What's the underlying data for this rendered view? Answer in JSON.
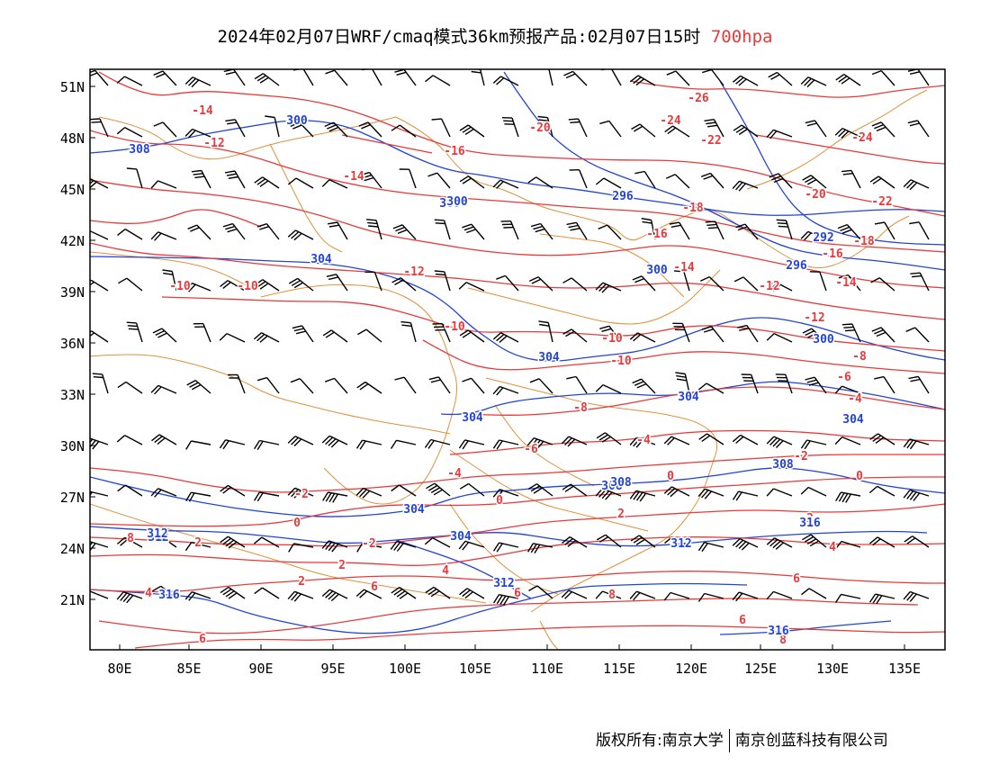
{
  "title": {
    "main": "2024年02月07日WRF/cmaq模式36km预报产品:02月07日15时",
    "level": "700hpa"
  },
  "axes": {
    "lat_labels": [
      "51N",
      "48N",
      "45N",
      "42N",
      "39N",
      "36N",
      "33N",
      "30N",
      "27N",
      "24N",
      "21N"
    ],
    "lon_labels": [
      "80E",
      "85E",
      "90E",
      "95E",
      "100E",
      "105E",
      "110E",
      "115E",
      "120E",
      "125E",
      "130E",
      "135E"
    ]
  },
  "colors": {
    "temperature": "#e8393b",
    "height": "#2243d6",
    "border": "#e0913a",
    "wind": "#000000"
  },
  "temp_labels": [
    "-14",
    "-12",
    "-16",
    "-20",
    "-26",
    "-24",
    "-22",
    "-24",
    "-14",
    "-18",
    "-20",
    "-22",
    "-16",
    "-18",
    "-16",
    "-14",
    "-12",
    "-14",
    "-10",
    "-12",
    "-10",
    "-12",
    "-10",
    "-8",
    "-10",
    "-6",
    "-4",
    "-8",
    "-4",
    "-6",
    "-2",
    "-4",
    "-2",
    "0",
    "0",
    "-2",
    "0",
    "0",
    "2",
    "2",
    "2",
    "2",
    "4",
    "4",
    "2",
    "6",
    "4",
    "6",
    "6",
    "6",
    "8",
    "6",
    "8",
    "8",
    "-10"
  ],
  "height_labels": [
    "308",
    "300",
    "300",
    "296",
    "292",
    "296",
    "300",
    "304",
    "300",
    "300",
    "304",
    "304",
    "304",
    "304",
    "308",
    "308",
    "304",
    "304",
    "308",
    "312",
    "312",
    "316",
    "312",
    "316",
    "316",
    "312"
  ],
  "footer": {
    "left": "版权所有:南京大学",
    "right": "南京创蓝科技有限公司"
  }
}
